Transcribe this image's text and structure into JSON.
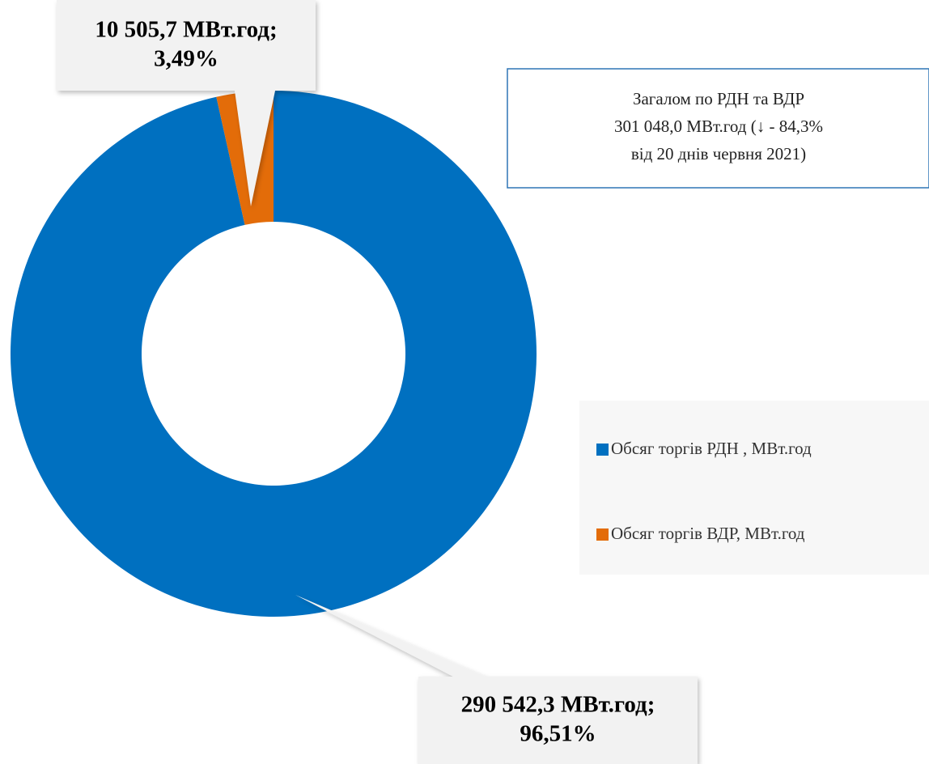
{
  "chart_data": {
    "type": "donut",
    "categories": [
      "Обсяг торгів РДН , МВт.год",
      "Обсяг торгів ВДР, МВт.год"
    ],
    "values": [
      290542.3,
      10505.7
    ],
    "value_labels": [
      "290 542,3 МВт.год;",
      "10 505,7 МВт.год;"
    ],
    "percents": [
      96.51,
      3.49
    ],
    "percent_labels": [
      "96,51%",
      "3,49%"
    ],
    "colors": [
      "#0070c0",
      "#e36c09"
    ],
    "annotation": [
      "Загалом по РДН та ВДР",
      "301 048,0 МВт.год (↓ - 84,3%",
      "від 20 днів червня 2021)"
    ],
    "legend": "right"
  }
}
